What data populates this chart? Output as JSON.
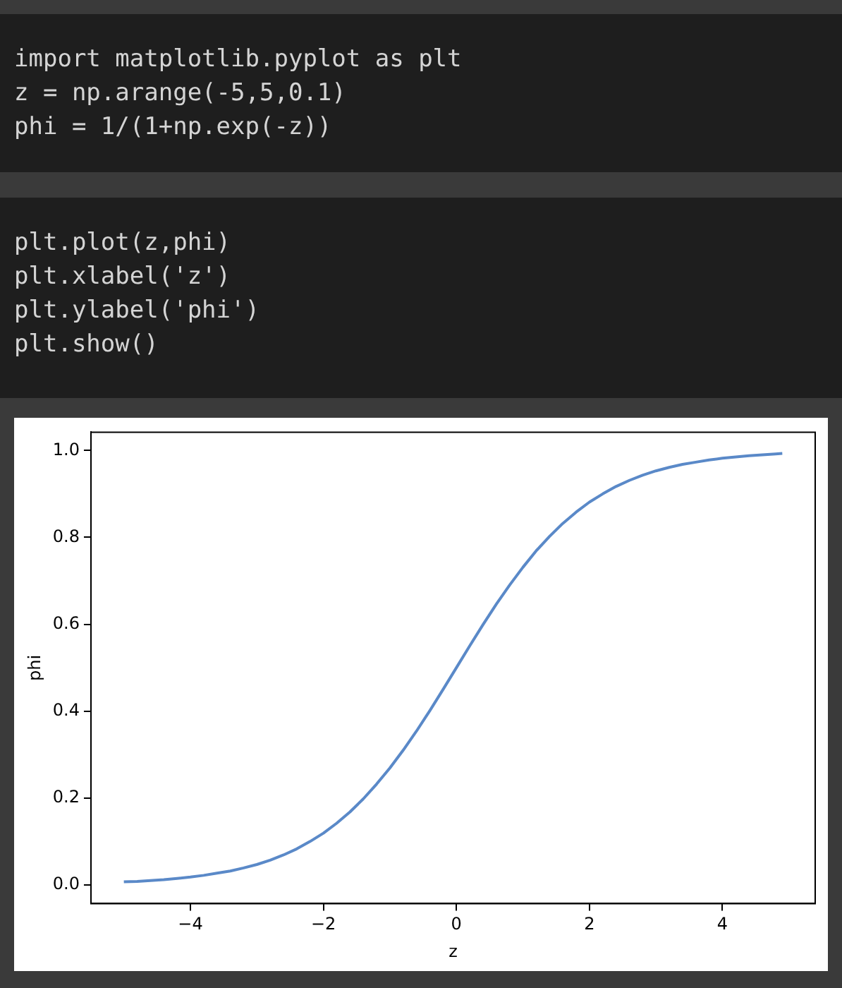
{
  "chart_data": {
    "type": "line",
    "xlabel": "z",
    "ylabel": "phi",
    "annotations": [
      "import matplotlib.pyplot as plt\nz = np.arange(-5,5,0.1)\nphi = 1/(1+np.exp(-z))",
      "plt.plot(z,phi)\nplt.xlabel('z')\nplt.ylabel('phi')\nplt.show()"
    ],
    "x": [
      -5,
      -4.8,
      -4.6,
      -4.4,
      -4.2,
      -4,
      -3.8,
      -3.6,
      -3.4,
      -3.2,
      -3,
      -2.8,
      -2.6,
      -2.4,
      -2.2,
      -2,
      -1.8,
      -1.6,
      -1.4,
      -1.2,
      -1,
      -0.8,
      -0.6,
      -0.4,
      -0.2,
      0,
      0.2,
      0.4,
      0.6,
      0.8,
      1,
      1.2,
      1.4,
      1.6,
      1.8,
      2,
      2.2,
      2.4,
      2.6,
      2.8,
      3,
      3.2,
      3.4,
      3.6,
      3.8,
      4,
      4.2,
      4.4,
      4.6,
      4.8,
      4.9
    ],
    "series": [
      {
        "color": "#5a89c8",
        "values": [
          0.007,
          0.008,
          0.01,
          0.012,
          0.015,
          0.018,
          0.022,
          0.027,
          0.032,
          0.039,
          0.047,
          0.057,
          0.069,
          0.083,
          0.1,
          0.119,
          0.142,
          0.168,
          0.198,
          0.232,
          0.269,
          0.31,
          0.354,
          0.401,
          0.45,
          0.5,
          0.55,
          0.599,
          0.646,
          0.69,
          0.731,
          0.769,
          0.802,
          0.832,
          0.858,
          0.881,
          0.9,
          0.917,
          0.931,
          0.943,
          0.953,
          0.961,
          0.968,
          0.973,
          0.978,
          0.982,
          0.985,
          0.988,
          0.99,
          0.992,
          0.993
        ]
      }
    ],
    "xlim": [
      -5.495,
      5.395
    ],
    "xticks": [
      -4,
      -2,
      0,
      2,
      4
    ],
    "ylim": [
      -0.043,
      1.042
    ],
    "yticks": [
      {
        "value": 0,
        "label": "0.0"
      },
      {
        "value": 0.2,
        "label": "0.2"
      },
      {
        "value": 0.4,
        "label": "0.4"
      },
      {
        "value": 0.6,
        "label": "0.6"
      },
      {
        "value": 0.8,
        "label": "0.8"
      },
      {
        "value": 1,
        "label": "1.0"
      }
    ],
    "marker": "none",
    "line_style": "solid"
  }
}
